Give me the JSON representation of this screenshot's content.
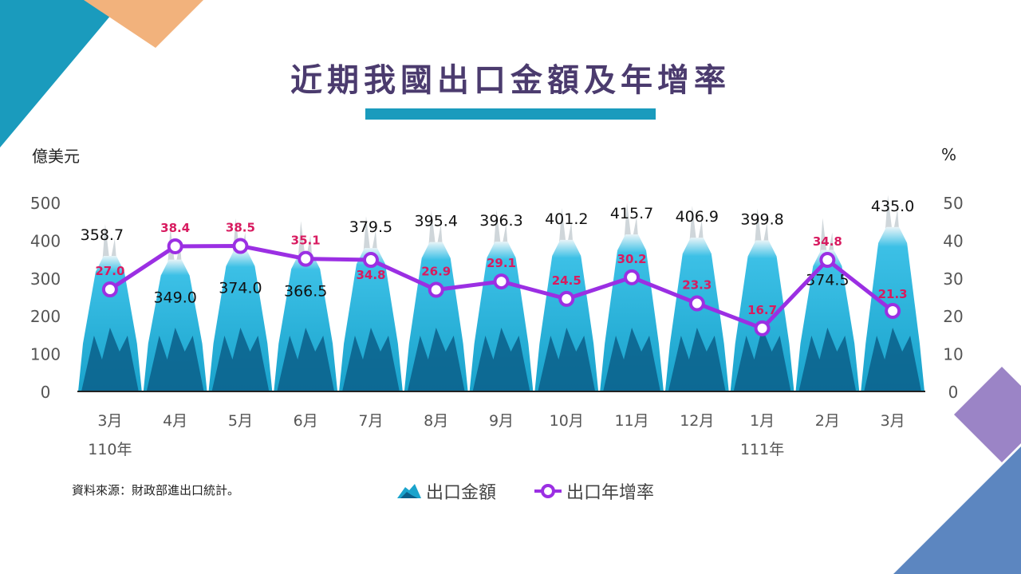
{
  "title": "近期我國出口金額及年增率",
  "y_left_unit": "億美元",
  "y_right_unit": "%",
  "source": "資料來源：財政部進出口統計。",
  "colors": {
    "bar": "#1aa3cc",
    "bar_dark": "#0b5f8a",
    "line": "#9b2fe3",
    "growth_label": "#d81b60",
    "title": "#4b3b6e"
  },
  "chart_data": {
    "type": "bar",
    "categories": [
      "3月",
      "4月",
      "5月",
      "6月",
      "7月",
      "8月",
      "9月",
      "10月",
      "11月",
      "12月",
      "1月",
      "2月",
      "3月"
    ],
    "year_labels": [
      {
        "index": 0,
        "label": "110年"
      },
      {
        "index": 10,
        "label": "111年"
      }
    ],
    "series": [
      {
        "name": "出口金額",
        "type": "bar",
        "axis": "left",
        "values": [
          358.7,
          349.0,
          374.0,
          366.5,
          379.5,
          395.4,
          396.3,
          401.2,
          415.7,
          406.9,
          399.8,
          374.5,
          435.0
        ]
      },
      {
        "name": "出口年增率",
        "type": "line",
        "axis": "right",
        "values": [
          27.0,
          38.4,
          38.5,
          35.1,
          34.8,
          26.9,
          29.1,
          24.5,
          30.2,
          23.3,
          16.7,
          34.8,
          21.3
        ]
      }
    ],
    "y_left": {
      "ticks": [
        0,
        100,
        200,
        300,
        400,
        500
      ],
      "range": [
        0,
        500
      ]
    },
    "y_right": {
      "ticks": [
        0,
        10,
        20,
        30,
        40,
        50
      ],
      "range": [
        0,
        50
      ]
    },
    "legend_position": "bottom",
    "grid": false
  }
}
